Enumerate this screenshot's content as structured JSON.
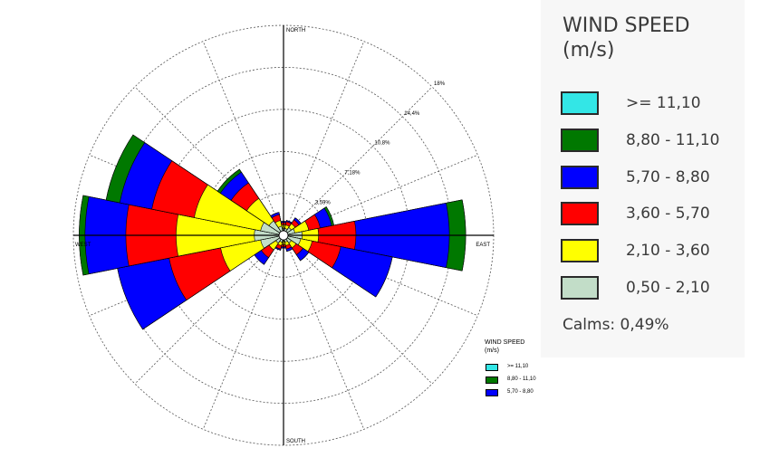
{
  "chart_data": {
    "type": "wind-rose",
    "directions": [
      "N",
      "NNE",
      "NE",
      "ENE",
      "E",
      "ESE",
      "SE",
      "SSE",
      "S",
      "SSW",
      "SW",
      "WSW",
      "W",
      "WNW",
      "NW",
      "NNW"
    ],
    "direction_labels": {
      "north": "NORTH",
      "south": "SOUTH",
      "east": "EAST",
      "west": "WEST"
    },
    "radial_ticks": [
      {
        "value": 3.59,
        "label": "3,59%"
      },
      {
        "value": 7.18,
        "label": "7,18%"
      },
      {
        "value": 10.8,
        "label": "10,8%"
      },
      {
        "value": 14.4,
        "label": "14,4%"
      },
      {
        "value": 18,
        "label": "18%"
      }
    ],
    "rmax": 18,
    "bins": [
      {
        "label": "0,50 - 2,10",
        "color": "#c2ddc8"
      },
      {
        "label": "2,10 - 3,60",
        "color": "#ffff00"
      },
      {
        "label": "3,60 - 5,70",
        "color": "#ff0000"
      },
      {
        "label": "5,70 - 8,80",
        "color": "#0000ff"
      },
      {
        "label": "8,80 - 11,10",
        "color": "#007800"
      },
      {
        "label": ">= 11,10",
        "color": "#33e6e6"
      }
    ],
    "series_cumulative_percent": [
      [
        0.6,
        0.9,
        1.1,
        1.2,
        1.2,
        1.2
      ],
      [
        0.6,
        0.9,
        1.2,
        1.3,
        1.3,
        1.3
      ],
      [
        0.8,
        1.2,
        1.6,
        1.8,
        1.8,
        1.8
      ],
      [
        1.0,
        2.2,
        3.2,
        4.2,
        4.4,
        4.4
      ],
      [
        1.6,
        3.0,
        6.2,
        14.2,
        15.6,
        15.6
      ],
      [
        1.5,
        2.5,
        5.0,
        9.5,
        9.5,
        9.5
      ],
      [
        0.8,
        1.3,
        2.0,
        2.6,
        2.6,
        2.6
      ],
      [
        0.6,
        0.9,
        1.2,
        1.4,
        1.4,
        1.4
      ],
      [
        0.5,
        0.8,
        1.0,
        1.1,
        1.1,
        1.1
      ],
      [
        0.6,
        0.9,
        1.2,
        1.3,
        1.3,
        1.3
      ],
      [
        0.8,
        1.5,
        2.3,
        3.0,
        3.0,
        3.0
      ],
      [
        2.0,
        5.5,
        10.0,
        14.5,
        14.5,
        14.5
      ],
      [
        2.5,
        9.2,
        13.5,
        17.0,
        17.5,
        17.5
      ],
      [
        2.0,
        7.8,
        11.5,
        14.3,
        15.5,
        15.5
      ],
      [
        1.5,
        3.8,
        5.4,
        6.5,
        6.8,
        6.8
      ],
      [
        0.8,
        1.3,
        1.8,
        2.0,
        2.0,
        2.0
      ]
    ]
  },
  "legend_main": {
    "title_line1": "WIND SPEED",
    "title_line2": "(m/s)",
    "items": [
      {
        "label": ">= 11,10",
        "color": "#33e6e6"
      },
      {
        "label": "8,80 - 11,10",
        "color": "#007800"
      },
      {
        "label": "5,70 - 8,80",
        "color": "#0000ff"
      },
      {
        "label": "3,60 - 5,70",
        "color": "#ff0000"
      },
      {
        "label": "2,10 - 3,60",
        "color": "#ffff00"
      },
      {
        "label": "0,50 - 2,10",
        "color": "#c2ddc8"
      }
    ],
    "calms": "Calms: 0,49%"
  },
  "legend_small": {
    "title_line1": "WIND SPEED",
    "title_line2": "(m/s)",
    "items": [
      {
        "label": ">= 11,10",
        "color": "#33e6e6"
      },
      {
        "label": "8,80 - 11,10",
        "color": "#007800"
      },
      {
        "label": "5,70 - 8,80",
        "color": "#0000ff"
      }
    ]
  }
}
